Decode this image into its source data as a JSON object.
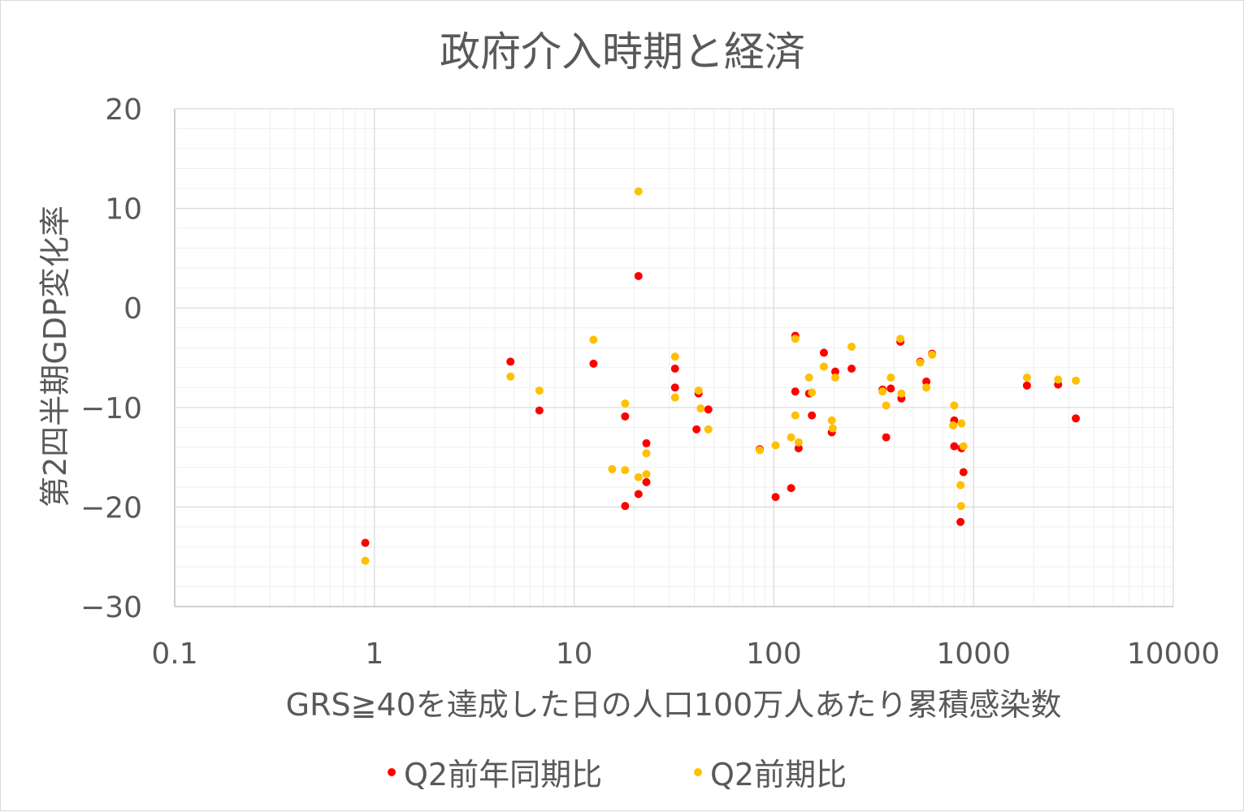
{
  "chart_data": {
    "type": "scatter",
    "title": "政府介入時期と経済",
    "xlabel": "GRS≧40を達成した日の人口100万人あたり累積感染数",
    "ylabel": "第2四半期GDP変化率",
    "x_scale": "log",
    "xlim": [
      0.1,
      10000
    ],
    "ylim": [
      -30,
      20
    ],
    "x_ticks": [
      "0.1",
      "1",
      "10",
      "100",
      "1000",
      "10000"
    ],
    "y_ticks": [
      "20",
      "10",
      "0",
      "−10",
      "−20",
      "−30"
    ],
    "grid": true,
    "legend_position": "bottom",
    "series": [
      {
        "name": "Q2前年同期比",
        "color": "#ff0000",
        "points": [
          [
            0.9,
            -23.6
          ],
          [
            4.8,
            -5.4
          ],
          [
            6.7,
            -10.3
          ],
          [
            12.5,
            -5.6
          ],
          [
            18,
            -10.9
          ],
          [
            18,
            -19.9
          ],
          [
            21,
            3.2
          ],
          [
            21,
            -18.7
          ],
          [
            23,
            -13.6
          ],
          [
            23,
            -17.5
          ],
          [
            32,
            -6.1
          ],
          [
            32,
            -8.0
          ],
          [
            41,
            -12.2
          ],
          [
            42,
            -8.6
          ],
          [
            47,
            -10.2
          ],
          [
            85,
            -14.2
          ],
          [
            102,
            -19.0
          ],
          [
            122,
            -18.1
          ],
          [
            128,
            -2.8
          ],
          [
            128,
            -8.4
          ],
          [
            133,
            -14.1
          ],
          [
            150,
            -8.6
          ],
          [
            155,
            -10.8
          ],
          [
            178,
            -4.5
          ],
          [
            195,
            -12.5
          ],
          [
            203,
            -6.4
          ],
          [
            245,
            -6.1
          ],
          [
            350,
            -8.2
          ],
          [
            365,
            -13.0
          ],
          [
            385,
            -8.1
          ],
          [
            430,
            -3.4
          ],
          [
            435,
            -9.1
          ],
          [
            540,
            -5.4
          ],
          [
            580,
            -7.4
          ],
          [
            620,
            -4.6
          ],
          [
            800,
            -11.3
          ],
          [
            800,
            -13.9
          ],
          [
            860,
            -21.5
          ],
          [
            870,
            -14.1
          ],
          [
            890,
            -16.5
          ],
          [
            1850,
            -7.8
          ],
          [
            2650,
            -7.7
          ],
          [
            3250,
            -11.1
          ]
        ]
      },
      {
        "name": "Q2前期比",
        "color": "#ffc000",
        "points": [
          [
            0.9,
            -25.4
          ],
          [
            4.8,
            -6.9
          ],
          [
            6.7,
            -8.3
          ],
          [
            12.5,
            -3.2
          ],
          [
            15.5,
            -16.2
          ],
          [
            18,
            -9.6
          ],
          [
            18,
            -16.3
          ],
          [
            21,
            11.7
          ],
          [
            21,
            -17.0
          ],
          [
            23,
            -14.6
          ],
          [
            23,
            -16.7
          ],
          [
            32,
            -4.9
          ],
          [
            32,
            -9.0
          ],
          [
            42,
            -8.3
          ],
          [
            43,
            -10.1
          ],
          [
            47,
            -12.2
          ],
          [
            85,
            -14.3
          ],
          [
            102,
            -13.8
          ],
          [
            122,
            -13.0
          ],
          [
            128,
            -3.1
          ],
          [
            128,
            -10.8
          ],
          [
            133,
            -13.5
          ],
          [
            150,
            -7.0
          ],
          [
            155,
            -8.5
          ],
          [
            178,
            -5.9
          ],
          [
            195,
            -11.3
          ],
          [
            197,
            -12.1
          ],
          [
            203,
            -7.0
          ],
          [
            245,
            -3.9
          ],
          [
            350,
            -8.4
          ],
          [
            365,
            -9.8
          ],
          [
            385,
            -7.0
          ],
          [
            430,
            -3.1
          ],
          [
            435,
            -8.6
          ],
          [
            540,
            -5.5
          ],
          [
            580,
            -8.0
          ],
          [
            620,
            -4.7
          ],
          [
            790,
            -11.8
          ],
          [
            800,
            -9.8
          ],
          [
            860,
            -17.8
          ],
          [
            865,
            -19.9
          ],
          [
            870,
            -11.6
          ],
          [
            890,
            -13.9
          ],
          [
            1850,
            -7.0
          ],
          [
            2650,
            -7.2
          ],
          [
            3250,
            -7.3
          ]
        ]
      }
    ]
  }
}
